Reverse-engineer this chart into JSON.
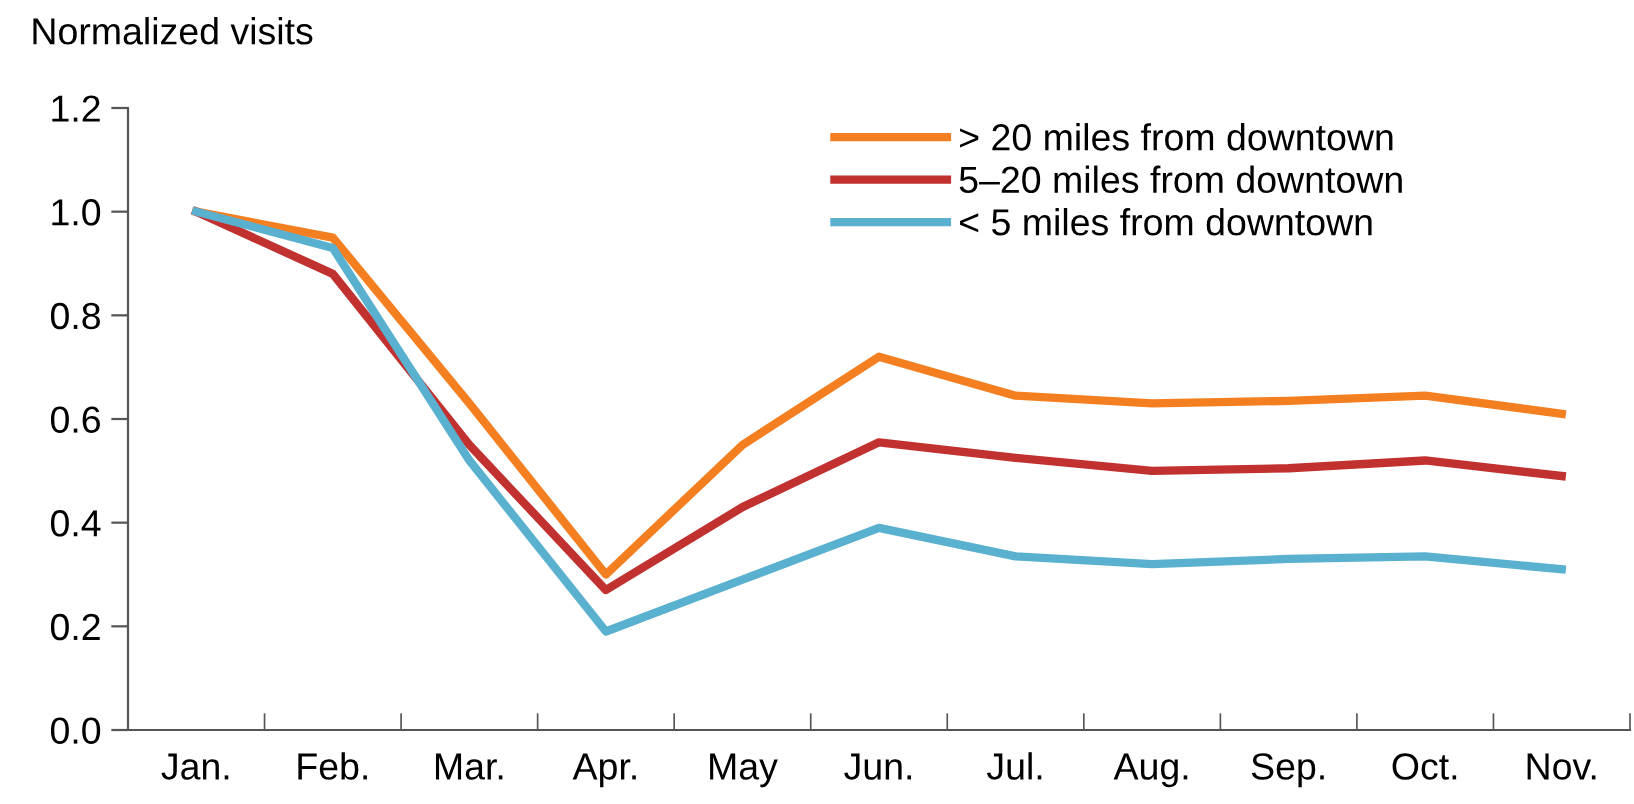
{
  "chart_data": {
    "type": "line",
    "ylabel": "Normalized visits",
    "categories": [
      "Jan.",
      "Feb.",
      "Mar.",
      "Apr.",
      "May",
      "Jun.",
      "Jul.",
      "Aug.",
      "Sep.",
      "Oct.",
      "Nov."
    ],
    "series": [
      {
        "name": "> 20 miles from downtown",
        "color": "#f47f20",
        "values": [
          1.0,
          0.95,
          0.63,
          0.3,
          0.55,
          0.72,
          0.645,
          0.63,
          0.635,
          0.645,
          0.61
        ]
      },
      {
        "name": "5–20 miles from downtown",
        "color": "#c0312f",
        "values": [
          1.0,
          0.88,
          0.55,
          0.27,
          0.43,
          0.555,
          0.525,
          0.5,
          0.505,
          0.52,
          0.49
        ]
      },
      {
        "name": "< 5 miles from downtown",
        "color": "#5ab0cf",
        "values": [
          1.0,
          0.93,
          0.52,
          0.19,
          0.29,
          0.39,
          0.335,
          0.32,
          0.33,
          0.335,
          0.31
        ]
      }
    ],
    "ylim": [
      0,
      1.2
    ],
    "yticks": [
      {
        "value": 0,
        "label": "0.0"
      },
      0.2,
      0.4,
      0.6,
      0.8,
      {
        "value": 1,
        "label": "1.0"
      },
      1.2
    ],
    "grid": false,
    "legend": "top",
    "marker": "none",
    "line_style": "solid"
  }
}
